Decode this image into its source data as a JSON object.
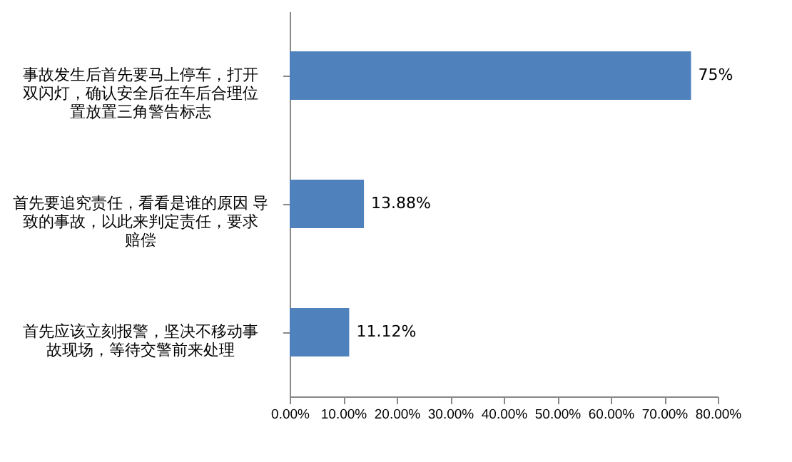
{
  "chart_data": {
    "type": "bar",
    "orientation": "horizontal",
    "categories": [
      "事故发生后首先要马上停车，打开双闪灯，确认安全后在车后合理位置放置三角警告标志",
      "首先要追究责任，看看是谁的原因 导致的事故，以此来判定责任，要求赔偿",
      "首先应该立刻报警，坚决不移动事故现场，等待交警前来处理"
    ],
    "values": [
      75,
      13.88,
      11.12
    ],
    "value_labels": [
      "75%",
      "13.88%",
      "11.12%"
    ],
    "color": "#4f81bd",
    "xlim": [
      0,
      80
    ],
    "xticks": [
      {
        "value": 0,
        "label": "0.00%"
      },
      {
        "value": 10,
        "label": "10.00%"
      },
      {
        "value": 20,
        "label": "20.00%"
      },
      {
        "value": 30,
        "label": "30.00%"
      },
      {
        "value": 40,
        "label": "40.00%"
      },
      {
        "value": 50,
        "label": "50.00%"
      },
      {
        "value": 60,
        "label": "60.00%"
      },
      {
        "value": 70,
        "label": "70.00%"
      },
      {
        "value": 80,
        "label": "80.00%"
      }
    ],
    "grid": false
  }
}
